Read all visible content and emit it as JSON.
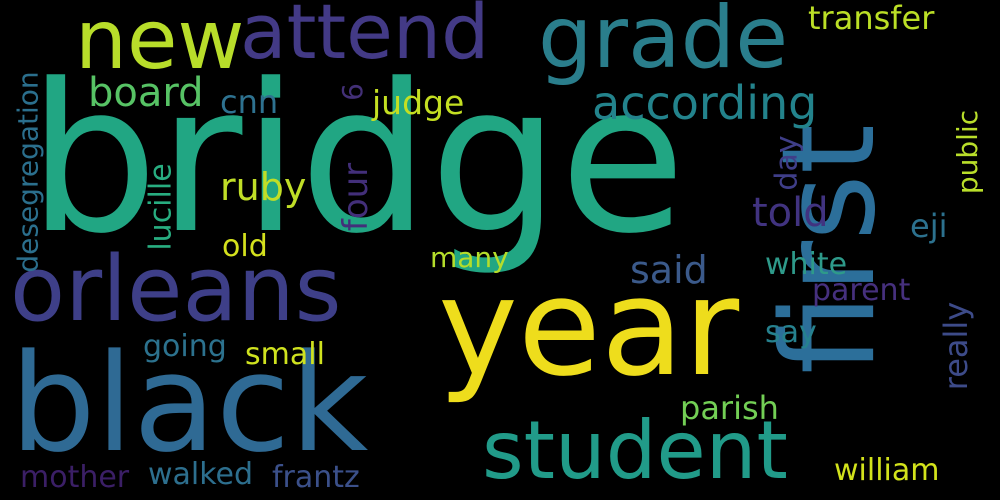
{
  "background": "#000000",
  "palette": {
    "yellow": "#f5e31d",
    "lime": "#b5de2b",
    "green": "#5ec962",
    "teal": "#21918c",
    "teal_dark": "#2c728e",
    "blue": "#3b528b",
    "purple": "#472d7b",
    "violet": "#440154",
    "seafoam": "#27ad81"
  },
  "words": {
    "bridge": "bridge",
    "year": "year",
    "first": "first",
    "black": "black",
    "orleans": "orleans",
    "new": "new",
    "attend": "attend",
    "grade": "grade",
    "student": "student",
    "transfer": "transfer",
    "according": "according",
    "board": "board",
    "cnn": "cnn",
    "six": "6",
    "judge": "judge",
    "desegregation": "desegregation",
    "lucille": "lucille",
    "ruby": "ruby",
    "four": "four",
    "told": "told",
    "day": "day",
    "public": "public",
    "old": "old",
    "eji": "eji",
    "many": "many",
    "said": "said",
    "white": "white",
    "parent": "parent",
    "really": "really",
    "say": "say",
    "going": "going",
    "small": "small",
    "parish": "parish",
    "mother": "mother",
    "walked": "walked",
    "frantz": "frantz",
    "william": "william"
  }
}
